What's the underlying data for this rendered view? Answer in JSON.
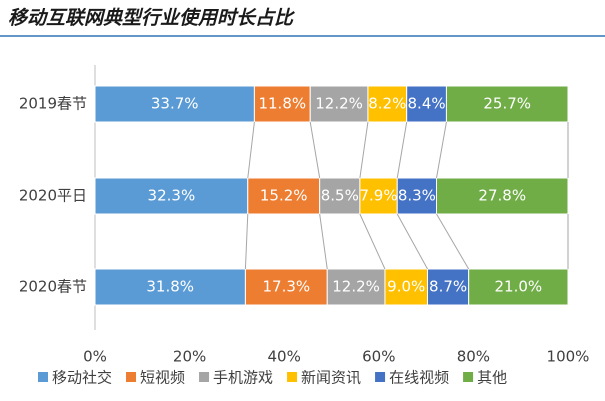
{
  "chart_data": {
    "type": "stacked-bar",
    "orientation": "horizontal",
    "title": "移动互联网典型行业使用时长占比",
    "categories": [
      "2019春节",
      "2020平日",
      "2020春节"
    ],
    "series": [
      {
        "name": "移动社交",
        "color": "#5b9bd5",
        "values": [
          33.7,
          32.3,
          31.8
        ],
        "value_labels": [
          "33.7%",
          "32.3%",
          "31.8%"
        ]
      },
      {
        "name": "短视频",
        "color": "#ed7d31",
        "values": [
          11.8,
          15.2,
          17.3
        ],
        "value_labels": [
          "11.8%",
          "15.2%",
          "17.3%"
        ]
      },
      {
        "name": "手机游戏",
        "color": "#a5a5a5",
        "values": [
          12.2,
          8.5,
          12.2
        ],
        "value_labels": [
          "12.2%",
          "8.5%",
          "12.2%"
        ]
      },
      {
        "name": "新闻资讯",
        "color": "#ffc000",
        "values": [
          8.2,
          7.9,
          9.0
        ],
        "value_labels": [
          "8.2%",
          "7.9%",
          "9.0%"
        ]
      },
      {
        "name": "在线视频",
        "color": "#4472c4",
        "values": [
          8.4,
          8.3,
          8.7
        ],
        "value_labels": [
          "8.4%",
          "8.3%",
          "8.7%"
        ]
      },
      {
        "name": "其他",
        "color": "#70ad47",
        "values": [
          25.7,
          27.8,
          21.0
        ],
        "value_labels": [
          "25.7%",
          "27.8%",
          "21.0%"
        ]
      }
    ],
    "xlim": [
      0,
      100
    ],
    "xticks": [
      {
        "value": 0,
        "label": "0%"
      },
      {
        "value": 20,
        "label": "20%"
      },
      {
        "value": 40,
        "label": "40%"
      },
      {
        "value": 60,
        "label": "60%"
      },
      {
        "value": 80,
        "label": "80%"
      },
      {
        "value": 100,
        "label": "100%"
      }
    ],
    "legend": "bottom",
    "connectors": true
  }
}
